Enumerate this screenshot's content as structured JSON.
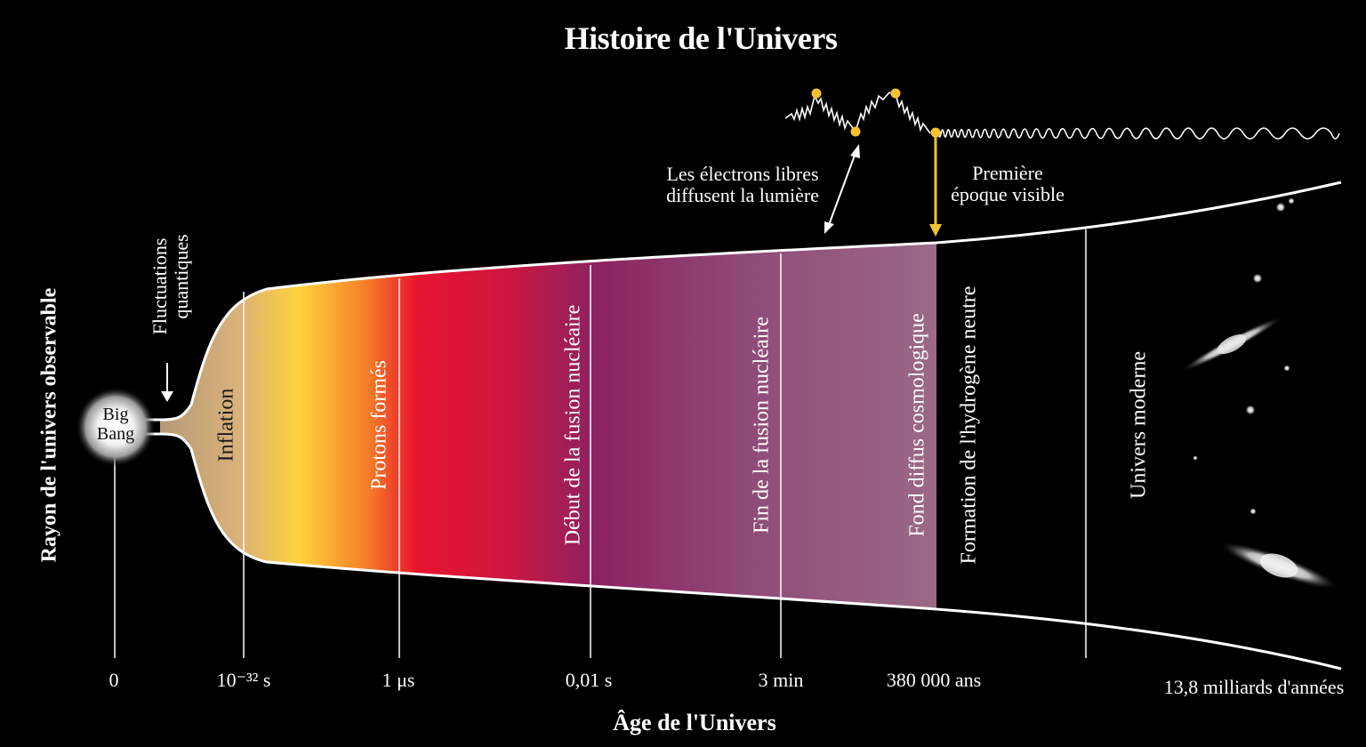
{
  "title": "Histoire de l'Univers",
  "y_axis_label": "Rayon de l'univers observable",
  "x_axis_label": "Âge de l'Univers",
  "big_bang_label": [
    "Big",
    "Bang"
  ],
  "quantum_fluctuations_label": [
    "Fluctuations",
    "quantiques"
  ],
  "ticks": [
    "0",
    "10⁻³² s",
    "1 μs",
    "0,01 s",
    "3 min",
    "380 000 ans",
    "13,8 milliards d'années"
  ],
  "eras": [
    "Inflation",
    "Protons formés",
    "Début de la fusion nucléaire",
    "Fin de la fusion nucléaire",
    "Fond diffus cosmologique",
    "Formation de l'hydrogène neutre",
    "Univers moderne"
  ],
  "annotations": {
    "free_electrons": [
      "Les électrons libres",
      "diffusent la lumière"
    ],
    "first_visible": [
      "Première",
      "époque visible"
    ]
  },
  "colors": {
    "background": "#000000",
    "inflation": "#d9b27a",
    "yellow": "#ffd23a",
    "red": "#e8142e",
    "purple": "#8c2260",
    "mauve": "#9a6a86",
    "photon": "#f7c230",
    "outline": "#ffffff"
  }
}
